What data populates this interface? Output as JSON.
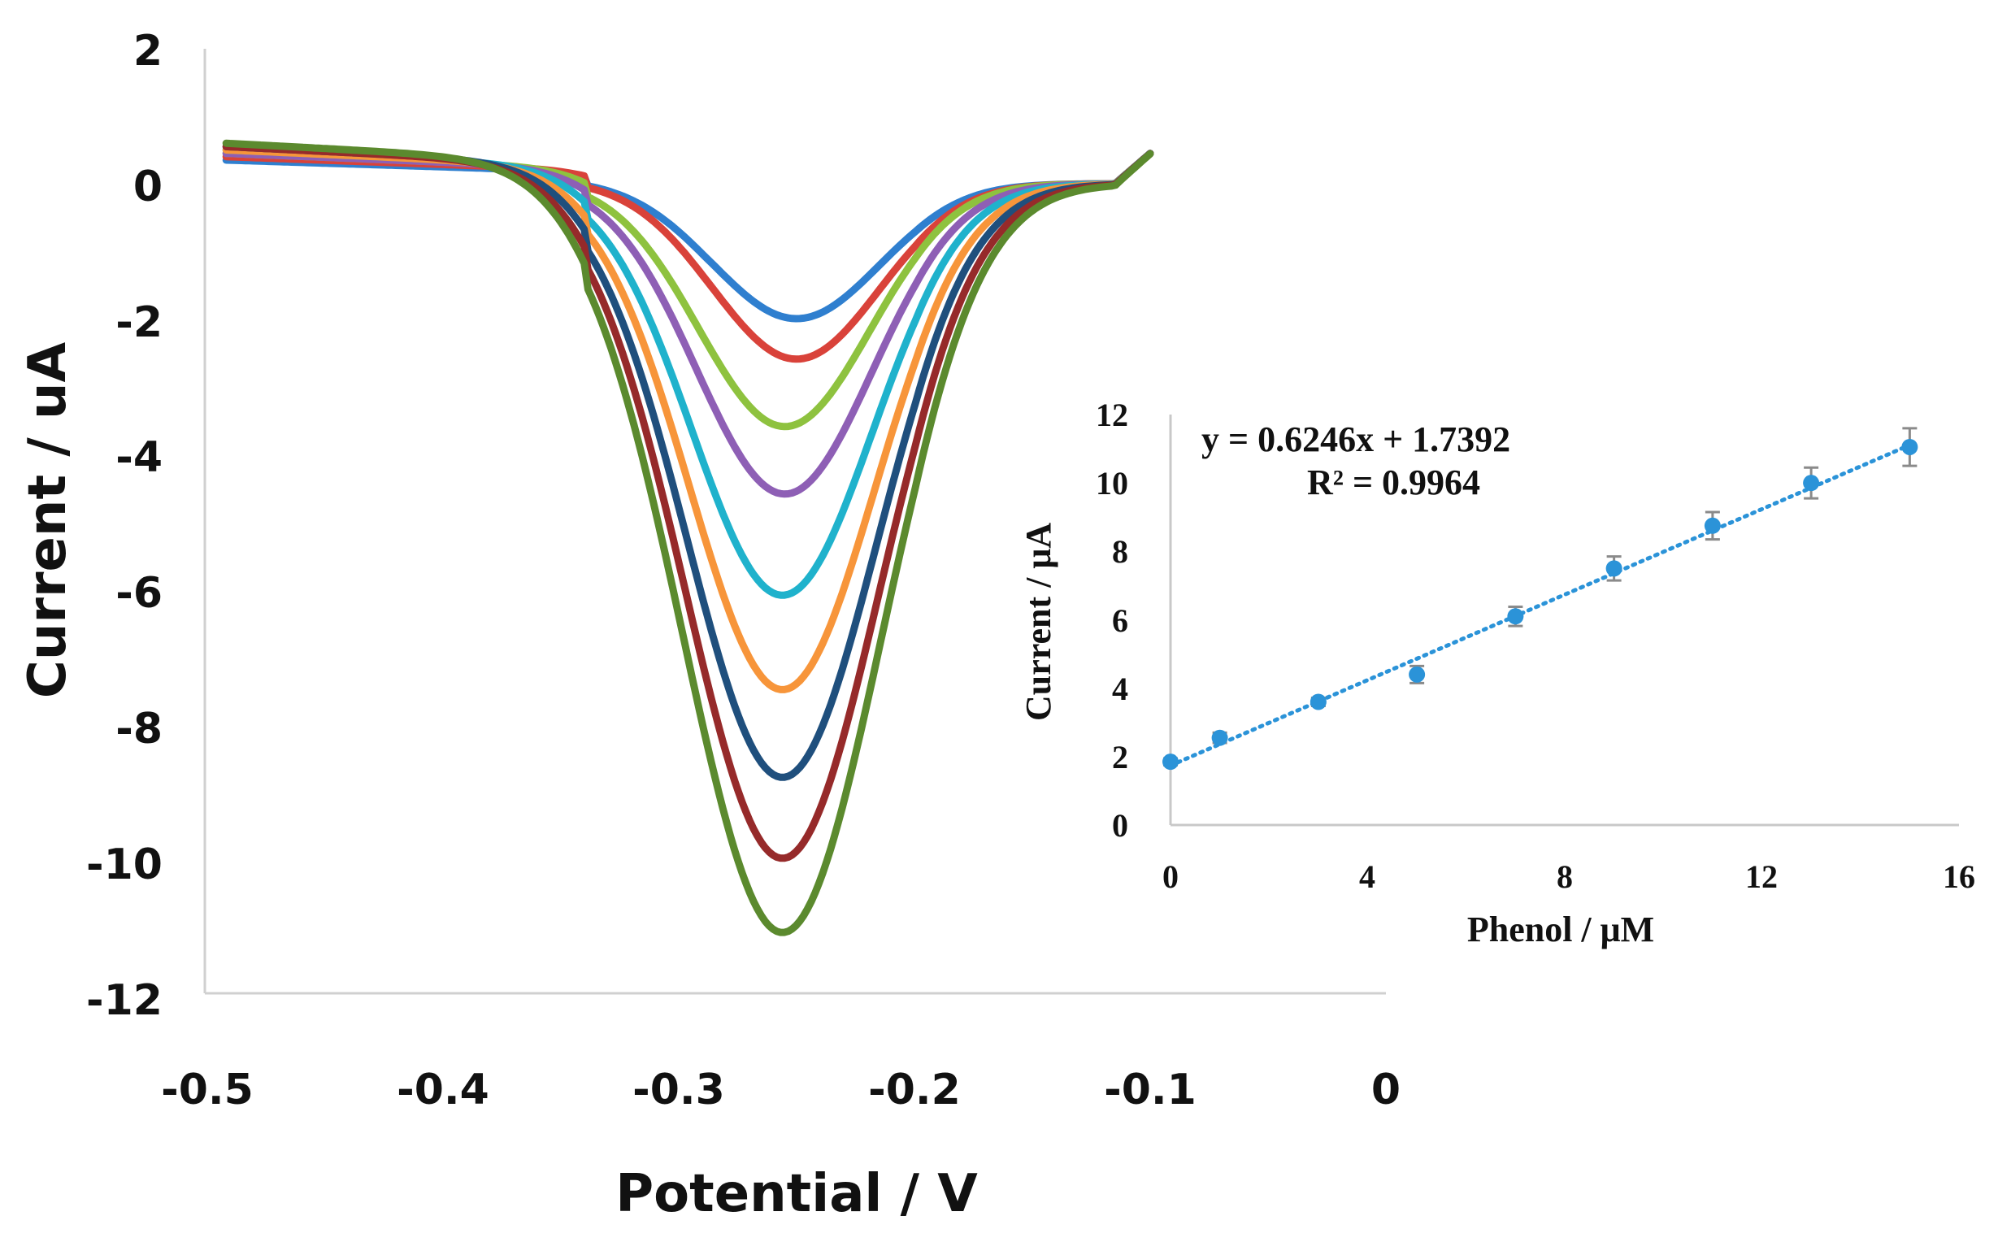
{
  "chart_data": [
    {
      "type": "line",
      "title": "",
      "xlabel": "Potential / V",
      "ylabel": "Current / uA",
      "xlim": [
        -0.5,
        0
      ],
      "ylim": [
        -12,
        2
      ],
      "x_tick_labels": [
        "-0.5",
        "-0.4",
        "-0.3",
        "-0.2",
        "-0.1",
        "0"
      ],
      "x_tick_values": [
        -0.5,
        -0.4,
        -0.3,
        -0.2,
        -0.1,
        0
      ],
      "y_tick_labels": [
        "2",
        "0",
        "-2",
        "-4",
        "-6",
        "-8",
        "-10",
        "-12"
      ],
      "y_tick_values": [
        2,
        0,
        -2,
        -4,
        -6,
        -8,
        -10,
        -12
      ],
      "grid": false,
      "x_range": [
        -0.5,
        -0.1
      ],
      "series": [
        {
          "name": "blue",
          "color": "#2f7fcf",
          "peak_x": -0.25,
          "peak_y": -2.0,
          "width": 0.035,
          "start_y": 0.35
        },
        {
          "name": "red",
          "color": "#d9423a",
          "peak_x": -0.25,
          "peak_y": -2.6,
          "width": 0.035,
          "start_y": 0.4
        },
        {
          "name": "light-green",
          "color": "#8ec23f",
          "peak_x": -0.255,
          "peak_y": -3.6,
          "width": 0.036,
          "start_y": 0.45
        },
        {
          "name": "purple",
          "color": "#8e5fb5",
          "peak_x": -0.255,
          "peak_y": -4.6,
          "width": 0.037,
          "start_y": 0.45
        },
        {
          "name": "cyan",
          "color": "#1fb2cc",
          "peak_x": -0.256,
          "peak_y": -6.1,
          "width": 0.038,
          "start_y": 0.5
        },
        {
          "name": "orange",
          "color": "#f7953a",
          "peak_x": -0.256,
          "peak_y": -7.5,
          "width": 0.039,
          "start_y": 0.5
        },
        {
          "name": "navy",
          "color": "#1f4f7d",
          "peak_x": -0.256,
          "peak_y": -8.8,
          "width": 0.04,
          "start_y": 0.55
        },
        {
          "name": "dark-red",
          "color": "#962a2a",
          "peak_x": -0.256,
          "peak_y": -10.0,
          "width": 0.041,
          "start_y": 0.55
        },
        {
          "name": "olive-green",
          "color": "#5b8a2e",
          "peak_x": -0.256,
          "peak_y": -11.1,
          "width": 0.042,
          "start_y": 0.6
        }
      ]
    },
    {
      "type": "scatter",
      "title": "",
      "xlabel": "Phenol / μM",
      "ylabel": "Current / μA",
      "xlim": [
        0,
        16
      ],
      "ylim": [
        0,
        12
      ],
      "x_tick_labels": [
        "0",
        "4",
        "8",
        "12",
        "16"
      ],
      "x_tick_values": [
        0,
        4,
        8,
        12,
        16
      ],
      "y_tick_labels": [
        "0",
        "2",
        "4",
        "6",
        "8",
        "10",
        "12"
      ],
      "y_tick_values": [
        0,
        2,
        4,
        6,
        8,
        10,
        12
      ],
      "grid": false,
      "marker_color": "#2b93d8",
      "x": [
        0,
        1,
        3,
        5,
        7,
        9,
        11,
        13,
        15
      ],
      "y": [
        1.85,
        2.55,
        3.6,
        4.4,
        6.1,
        7.5,
        8.75,
        10.0,
        11.05
      ],
      "error": [
        0.1,
        0.15,
        0.12,
        0.25,
        0.28,
        0.35,
        0.4,
        0.45,
        0.55
      ],
      "trendline": {
        "slope": 0.6246,
        "intercept": 1.7392,
        "style": "dotted",
        "color": "#2b93d8"
      },
      "annotations": [
        "y = 0.6246x + 1.7392",
        "R² = 0.9964"
      ]
    }
  ]
}
